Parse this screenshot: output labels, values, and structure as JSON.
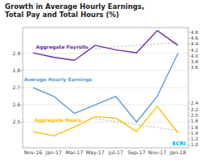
{
  "chart_data": {
    "type": "line",
    "title": "Growth in Average Hourly Earnings,\nTotal Pay and Total Hours (%)",
    "categories": [
      "Nov-16",
      "Jan-17",
      "Mar-17",
      "May-17",
      "Jul-17",
      "Sep-17",
      "Nov-17",
      "Jan-18"
    ],
    "series": [
      {
        "name": "Average Hourly Earnings",
        "color": "#5b9bd5",
        "values": [
          2.7,
          2.65,
          2.55,
          2.6,
          2.65,
          2.5,
          2.65,
          2.9
        ]
      },
      {
        "name": "Aggregate Payrolls",
        "color": "#7030a0",
        "axis": "y2",
        "values": [
          4.1,
          3.95,
          3.85,
          4.35,
          4.2,
          4.1,
          4.85,
          4.35
        ]
      },
      {
        "name": "Aggregate Hours",
        "color": "#ffc000",
        "axis": "y2",
        "values": [
          1.45,
          1.3,
          1.6,
          1.95,
          1.9,
          1.45,
          2.3,
          1.4
        ]
      },
      {
        "color": "#bbbbbb",
        "axis": "y2",
        "line_style": "dashed",
        "values": [
          null,
          null,
          null,
          4.25,
          4.3,
          4.35,
          4.4,
          4.45
        ]
      },
      {
        "color": "#bbbbbb",
        "axis": "y2",
        "line_style": "dashed",
        "values": [
          null,
          null,
          null,
          1.88,
          1.78,
          1.68,
          1.58,
          1.48
        ]
      }
    ],
    "ylim": [
      2.35,
      3.05
    ],
    "yticks": [
      2.5,
      2.6,
      2.7,
      2.8,
      2.9
    ],
    "y2lim": [
      0.9,
      4.95
    ],
    "y2ticks": [
      {
        "value": 1.0,
        "label": "1.0"
      },
      1.2,
      1.4,
      1.6,
      1.8,
      {
        "value": 2.0,
        "label": "2.0"
      },
      2.2,
      2.4,
      3.6,
      3.8,
      {
        "value": 4.0,
        "label": "4.0"
      },
      4.2,
      4.4,
      4.6,
      4.8
    ],
    "grid": true,
    "annotations": [
      {
        "text": "ECRI",
        "color": "#00b0f0"
      }
    ]
  }
}
